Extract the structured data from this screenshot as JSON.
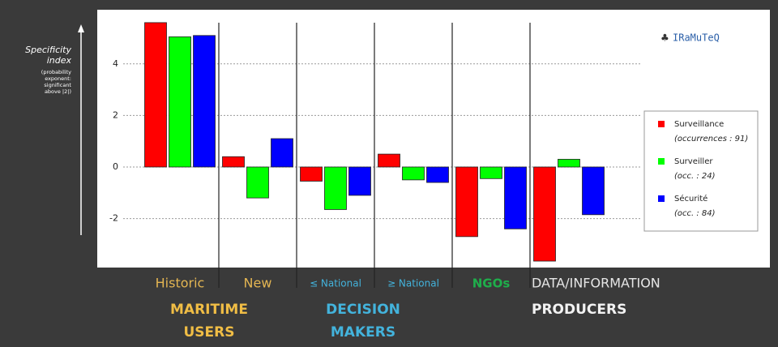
{
  "chart_data": {
    "type": "bar",
    "ylabel": [
      "Specificity",
      "index"
    ],
    "ylabel_note": [
      "(probability",
      "exponent:",
      "significant",
      "above |2|)"
    ],
    "watermark": "IRaMuTeQ",
    "categories": [
      "Historic",
      "New",
      "≤ National",
      "≥ National",
      "NGOs",
      "DATA/INFORMATION"
    ],
    "category_colors": [
      "#e3b552",
      "#e3b552",
      "#43b3dc",
      "#43b3dc",
      "#1fae4b",
      "#e6e6e6"
    ],
    "group_labels": [
      [
        "MARITIME",
        "USERS"
      ],
      [
        "DECISION",
        "MAKERS"
      ],
      [
        "PRODUCERS"
      ]
    ],
    "group_colors": [
      "#f0bd45",
      "#43b3dc",
      "#f2f2f2"
    ],
    "series": [
      {
        "name": "Surveillance",
        "note": "(occurrences : 91)",
        "color": "#ff0000",
        "values": [
          5.6,
          0.4,
          -0.55,
          0.5,
          -2.7,
          -3.65
        ]
      },
      {
        "name": "Surveiller",
        "note": "(occ. : 24)",
        "color": "#00ff00",
        "values": [
          5.05,
          -1.2,
          -1.65,
          -0.5,
          -0.45,
          0.3
        ]
      },
      {
        "name": "Sécurité",
        "note": "(occ. : 84)",
        "color": "#0000ff",
        "values": [
          5.1,
          1.1,
          -1.1,
          -0.6,
          -2.4,
          -1.85
        ]
      }
    ],
    "ylim": [
      -3.9,
      6.1
    ],
    "yticks": [
      -2,
      0,
      2,
      4
    ],
    "grid": true,
    "legend": "right"
  }
}
